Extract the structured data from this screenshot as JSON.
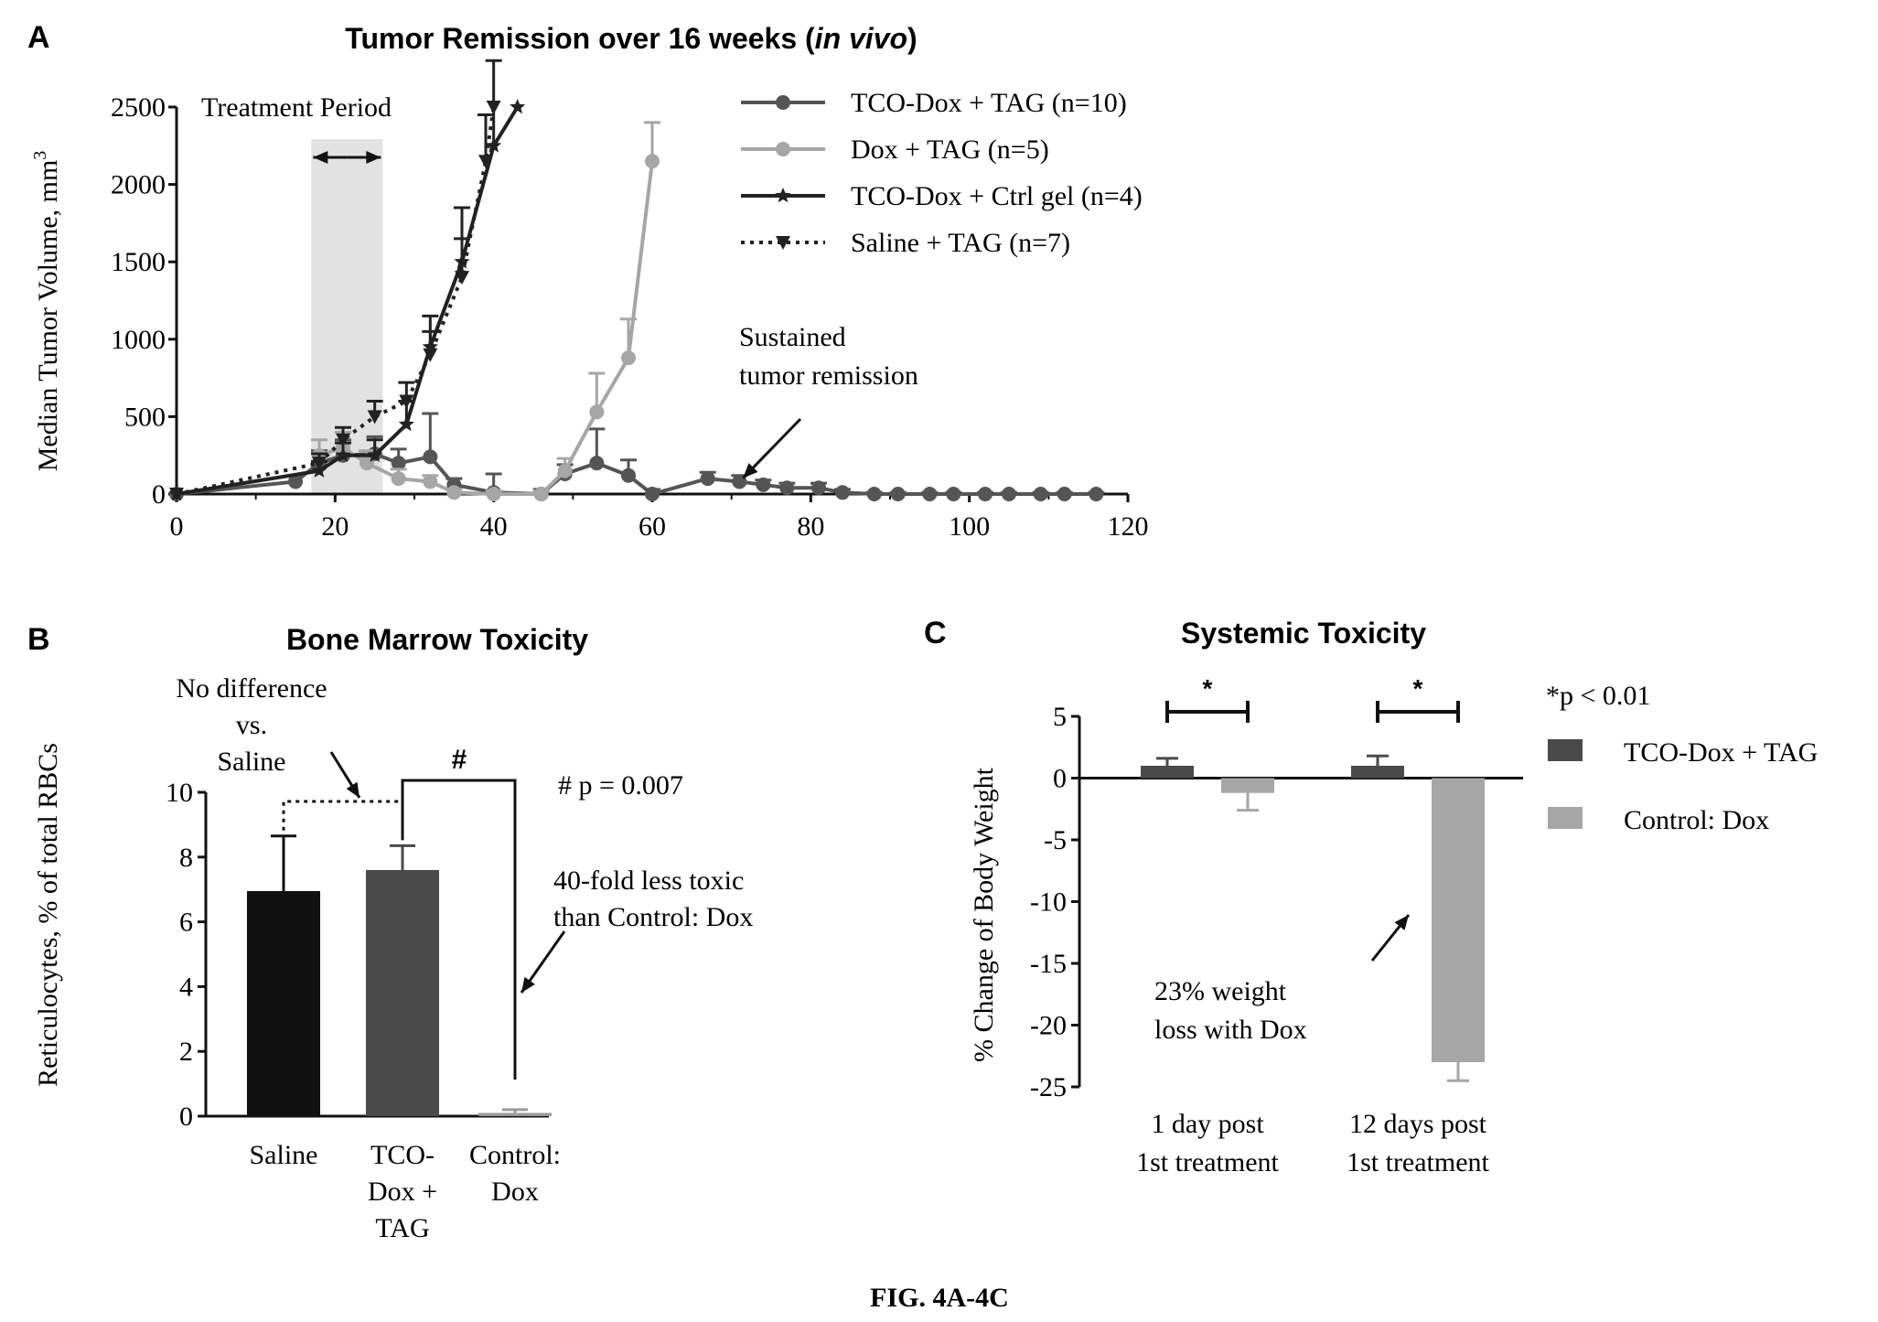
{
  "figure_caption": "FIG. 4A-4C",
  "chart_data": [
    {
      "panel": "A",
      "type": "line",
      "title": "Tumor Remission over 16 weeks (in vivo)",
      "title_main": "Tumor Remission over 16 weeks (",
      "title_italic": "in vivo",
      "title_end": ")",
      "xlabel": "",
      "ylabel": "Median Tumor Volume, mm",
      "ylabel_sup": "3",
      "xlim": [
        0,
        120
      ],
      "ylim": [
        0,
        2500
      ],
      "xticks": [
        "0",
        "20",
        "40",
        "60",
        "80",
        "100",
        "120"
      ],
      "yticks": [
        "0",
        "500",
        "1000",
        "1500",
        "2000",
        "2500"
      ],
      "legend_position": "top-right",
      "annotations": {
        "treatment_period": "Treatment Period",
        "treatment_range": [
          17,
          26
        ],
        "remission_line1": "Sustained",
        "remission_line2": "tumor remission",
        "remission_arrow_target": [
          71,
          80
        ]
      },
      "series": [
        {
          "name": "TCO-Dox + TAG (n=10)",
          "color": "#555555",
          "style": "solid",
          "marker": "circle",
          "x": [
            0,
            15,
            18,
            21,
            25,
            28,
            32,
            35,
            40,
            46,
            49,
            53,
            57,
            60,
            67,
            71,
            74,
            77,
            81,
            84,
            88,
            91,
            95,
            98,
            102,
            105,
            109,
            112,
            116
          ],
          "y": [
            0,
            80,
            200,
            250,
            260,
            200,
            240,
            60,
            10,
            0,
            130,
            200,
            120,
            0,
            100,
            80,
            60,
            40,
            40,
            10,
            0,
            0,
            0,
            0,
            0,
            0,
            0,
            0,
            0
          ],
          "err": [
            0,
            40,
            80,
            100,
            110,
            90,
            280,
            40,
            120,
            30,
            60,
            220,
            100,
            30,
            40,
            40,
            30,
            30,
            30,
            20,
            10,
            10,
            10,
            10,
            10,
            10,
            10,
            10,
            10
          ]
        },
        {
          "name": "Dox + TAG (n=5)",
          "color": "#a6a6a6",
          "style": "solid",
          "marker": "circle",
          "x": [
            18,
            21,
            24,
            28,
            32,
            35,
            40,
            46,
            49,
            53,
            57,
            60
          ],
          "y": [
            250,
            300,
            200,
            100,
            80,
            10,
            0,
            0,
            150,
            530,
            880,
            2150
          ],
          "err": [
            100,
            100,
            80,
            60,
            40,
            20,
            20,
            20,
            80,
            250,
            250,
            250
          ]
        },
        {
          "name": "TCO-Dox + Ctrl gel (n=4)",
          "color": "#222222",
          "style": "solid",
          "marker": "star",
          "x": [
            0,
            18,
            21,
            25,
            29,
            32,
            36,
            40,
            43
          ],
          "y": [
            0,
            150,
            250,
            250,
            450,
            950,
            1500,
            2250,
            2500
          ],
          "err": [
            0,
            60,
            80,
            100,
            150,
            200,
            350,
            550,
            0
          ]
        },
        {
          "name": "Saline + TAG (n=7)",
          "color": "#222222",
          "style": "dotted",
          "marker": "triangle-down",
          "x": [
            0,
            18,
            21,
            25,
            29,
            32,
            36,
            39,
            40
          ],
          "y": [
            0,
            200,
            350,
            500,
            600,
            900,
            1400,
            2150,
            2500
          ],
          "err": [
            0,
            60,
            80,
            100,
            120,
            150,
            250,
            300,
            0
          ]
        }
      ]
    },
    {
      "panel": "B",
      "type": "bar",
      "title": "Bone Marrow Toxicity",
      "xlabel": "",
      "ylabel": "Reticulocytes, % of total RBCs",
      "ylim": [
        0,
        10
      ],
      "yticks": [
        "0",
        "2",
        "4",
        "6",
        "8",
        "10"
      ],
      "categories": [
        [
          "Saline"
        ],
        [
          "TCO-",
          "Dox +",
          "TAG"
        ],
        [
          "Control:",
          "Dox"
        ]
      ],
      "values": [
        6.95,
        7.6,
        0.1
      ],
      "errors": [
        1.7,
        0.75,
        0.1
      ],
      "colors": [
        "#111111",
        "#4a4a4a",
        "#9a9a9a"
      ],
      "annotations": {
        "no_diff": [
          "No difference",
          "vs.",
          "Saline"
        ],
        "hash_sign": "#",
        "hash_p": "# p = 0.007",
        "less_toxic": [
          "40-fold less toxic",
          "than Control: Dox"
        ]
      }
    },
    {
      "panel": "C",
      "type": "bar",
      "title": "Systemic Toxicity",
      "xlabel": "",
      "ylabel": "% Change of Body Weight",
      "ylim": [
        -25,
        5
      ],
      "yticks": [
        "5",
        "0",
        "-5",
        "-10",
        "-15",
        "-20",
        "-25"
      ],
      "categories": [
        [
          "1 day post",
          "1st treatment"
        ],
        [
          "12 days post",
          "1st treatment"
        ]
      ],
      "series": [
        {
          "name": "TCO-Dox + TAG",
          "color": "#4a4a4a",
          "values": [
            1.0,
            1.0
          ],
          "errors": [
            0.6,
            0.8
          ]
        },
        {
          "name": "Control: Dox",
          "color": "#a6a6a6",
          "values": [
            -1.2,
            -23.0
          ],
          "errors": [
            1.4,
            1.5
          ]
        }
      ],
      "legend_position": "right",
      "annotations": {
        "p_value": "*p < 0.01",
        "star": "*",
        "weight_loss": [
          "23% weight",
          "loss with Dox"
        ]
      }
    }
  ],
  "panels": {
    "a": "A",
    "b": "B",
    "c": "C"
  }
}
